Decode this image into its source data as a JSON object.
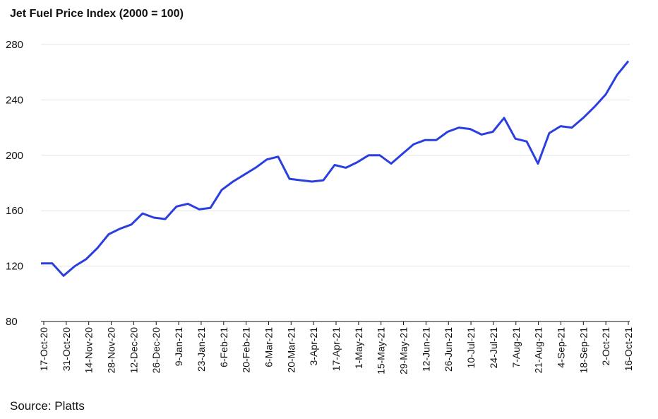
{
  "chart_data": {
    "type": "line",
    "title": "Jet Fuel Price Index (2000 = 100)",
    "source": "Source: Platts",
    "ylim": [
      80,
      280
    ],
    "yticks": [
      80,
      120,
      160,
      200,
      240,
      280
    ],
    "grid": true,
    "x_tick_labels": [
      "17-Oct-20",
      "31-Oct-20",
      "14-Nov-20",
      "28-Nov-20",
      "12-Dec-20",
      "26-Dec-20",
      "9-Jan-21",
      "23-Jan-21",
      "6-Feb-21",
      "20-Feb-21",
      "6-Mar-21",
      "20-Mar-21",
      "3-Apr-21",
      "17-Apr-21",
      "1-May-21",
      "15-May-21",
      "29-May-21",
      "12-Jun-21",
      "26-Jun-21",
      "10-Jul-21",
      "24-Jul-21",
      "7-Aug-21",
      "21-Aug-21",
      "4-Sep-21",
      "18-Sep-21",
      "2-Oct-21",
      "16-Oct-21"
    ],
    "series": [
      {
        "color": "#2b3fe0",
        "values": [
          122,
          122,
          113,
          120,
          125,
          133,
          143,
          147,
          150,
          158,
          155,
          154,
          163,
          165,
          161,
          162,
          175,
          181,
          186,
          191,
          197,
          199,
          183,
          182,
          181,
          182,
          193,
          191,
          195,
          200,
          200,
          194,
          201,
          208,
          211,
          211,
          217,
          220,
          219,
          215,
          217,
          227,
          212,
          210,
          194,
          216,
          221,
          220,
          227,
          235,
          244,
          258,
          268
        ]
      }
    ]
  }
}
